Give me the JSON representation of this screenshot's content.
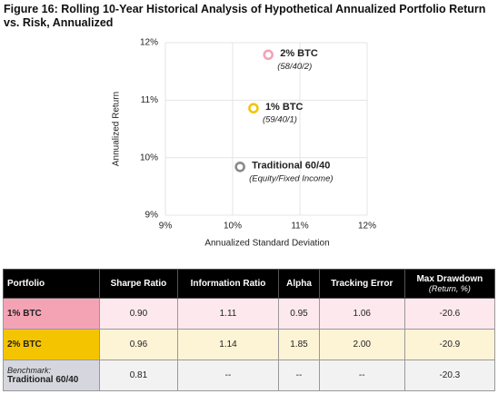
{
  "chart_data": {
    "type": "scatter",
    "title": "Figure 16: Rolling 10-Year Historical Analysis of Hypothetical Annualized Portfolio Return vs. Risk, Annualized",
    "x_label": "Annualized Standard Deviation",
    "y_label": "Annualized Return",
    "xlim": [
      9,
      12
    ],
    "ylim": [
      9,
      12
    ],
    "xticks": [
      {
        "value": 9,
        "label": "9%"
      },
      {
        "value": 10,
        "label": "10%"
      },
      {
        "value": 11,
        "label": "11%"
      },
      {
        "value": 12,
        "label": "12%"
      }
    ],
    "yticks": [
      {
        "value": 9,
        "label": "9%"
      },
      {
        "value": 10,
        "label": "10%"
      },
      {
        "value": 11,
        "label": "11%"
      },
      {
        "value": 12,
        "label": "12%"
      }
    ],
    "grid": true,
    "series": [
      {
        "name": "2% BTC",
        "sublabel": "(58/40/2)",
        "color": "#f4a3b5",
        "x": [
          10.53
        ],
        "values": [
          11.79
        ]
      },
      {
        "name": "1% BTC",
        "sublabel": "(59/40/1)",
        "color": "#f5c400",
        "x": [
          10.31
        ],
        "values": [
          10.86
        ]
      },
      {
        "name": "Traditional 60/40",
        "sublabel": "(Equity/Fixed Income)",
        "color": "#8a8a8a",
        "x": [
          10.11
        ],
        "values": [
          9.84
        ]
      }
    ]
  },
  "table": {
    "header": [
      "Portfolio",
      "Sharpe Ratio",
      "Information Ratio",
      "Alpha",
      "Tracking Error",
      "Max Drawdown"
    ],
    "header_note": "(Return, %)",
    "rows": [
      {
        "portfolio": "1% BTC",
        "color": "#f4a3b5",
        "bg": "#fde8ee",
        "cells": [
          "0.90",
          "1.11",
          "0.95",
          "1.06",
          "-20.6"
        ]
      },
      {
        "portfolio": "2% BTC",
        "color": "#f5c400",
        "bg": "#fdf4d6",
        "cells": [
          "0.96",
          "1.14",
          "1.85",
          "2.00",
          "-20.9"
        ]
      },
      {
        "note": "Benchmark:",
        "portfolio": "Traditional 60/40",
        "color": "#d6d6de",
        "bg": "#f2f2f2",
        "cells": [
          "0.81",
          "--",
          "--",
          "--",
          "-20.3"
        ]
      }
    ]
  }
}
